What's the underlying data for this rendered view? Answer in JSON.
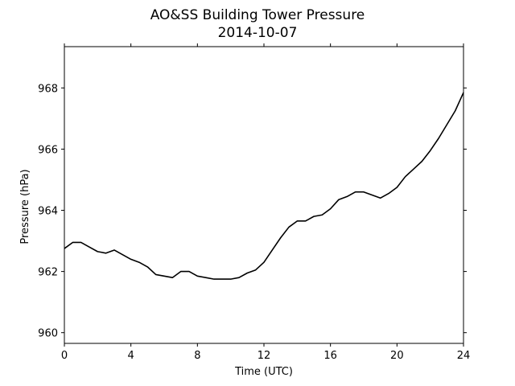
{
  "chart_data": {
    "type": "line",
    "title": "AO&SS Building Tower Pressure",
    "subtitle": "2014-10-07",
    "xlabel": "Time (UTC)",
    "ylabel": "Pressure (hPa)",
    "xlim": [
      0,
      24
    ],
    "ylim": [
      959.65,
      969.35
    ],
    "xticks": [
      0,
      4,
      8,
      12,
      16,
      20,
      24
    ],
    "yticks": [
      960,
      962,
      964,
      966,
      968
    ],
    "grid": false,
    "line_color": "#000000",
    "series": [
      {
        "x": [
          0,
          0.5,
          1,
          1.5,
          2,
          2.5,
          3,
          3.5,
          4,
          4.5,
          5,
          5.5,
          6,
          6.5,
          7,
          7.5,
          8,
          8.5,
          9,
          9.5,
          10,
          10.5,
          11,
          11.5,
          12,
          12.5,
          13,
          13.5,
          14,
          14.5,
          15,
          15.5,
          16,
          16.5,
          17,
          17.5,
          18,
          18.5,
          19,
          19.5,
          20,
          20.5,
          21,
          21.5,
          22,
          22.5,
          23,
          23.5,
          24
        ],
        "y": [
          962.75,
          962.95,
          962.95,
          962.8,
          962.65,
          962.6,
          962.7,
          962.55,
          962.4,
          962.3,
          962.15,
          961.9,
          961.85,
          961.8,
          962.0,
          962.0,
          961.85,
          961.8,
          961.75,
          961.75,
          961.75,
          961.8,
          961.95,
          962.05,
          962.3,
          962.7,
          963.1,
          963.45,
          963.65,
          963.65,
          963.8,
          963.85,
          964.05,
          964.35,
          964.45,
          964.6,
          964.6,
          964.5,
          964.4,
          964.55,
          964.75,
          965.1,
          965.35,
          965.6,
          965.95,
          966.35,
          966.8,
          967.25,
          967.85
        ]
      }
    ]
  }
}
